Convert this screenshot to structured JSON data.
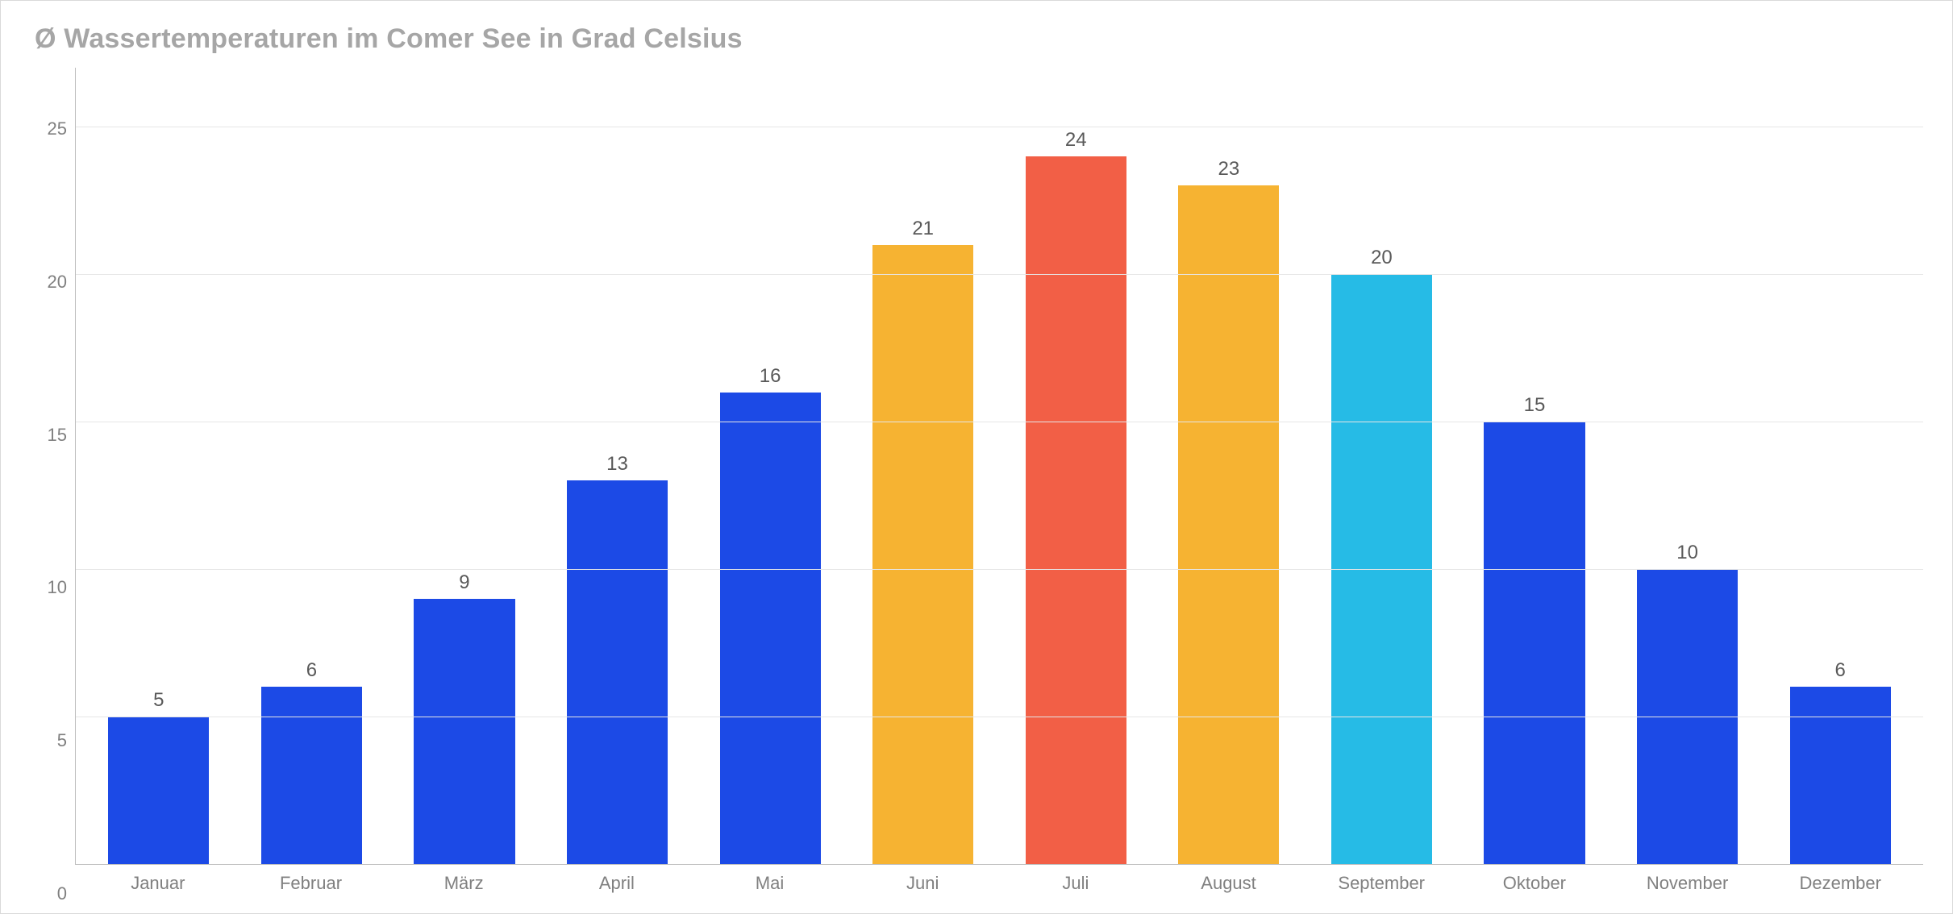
{
  "chart": {
    "type": "bar",
    "title": "Ø Wassertemperaturen im Comer See in Grad Celsius",
    "title_color": "#a6a6a6",
    "title_fontsize": 34,
    "title_fontweight": 700,
    "categories": [
      "Januar",
      "Februar",
      "März",
      "April",
      "Mai",
      "Juni",
      "Juli",
      "August",
      "September",
      "Oktober",
      "November",
      "Dezember"
    ],
    "values": [
      5,
      6,
      9,
      13,
      16,
      21,
      24,
      23,
      20,
      15,
      10,
      6
    ],
    "bar_colors": [
      "#1c4ae6",
      "#1c4ae6",
      "#1c4ae6",
      "#1c4ae6",
      "#1c4ae6",
      "#f6b332",
      "#f25f46",
      "#f6b332",
      "#26bbe6",
      "#1c4ae6",
      "#1c4ae6",
      "#1c4ae6"
    ],
    "ymin": 0,
    "ymax": 27,
    "ytick_step": 5,
    "ytick_labels": [
      "0",
      "5",
      "10",
      "15",
      "20",
      "25"
    ],
    "bar_width": 0.66,
    "background_color": "#ffffff",
    "border_color": "#d9d9d9",
    "grid_color": "#e6e6e6",
    "axis_line_color": "#bfbfbf",
    "axis_label_color": "#808080",
    "axis_label_fontsize": 22,
    "value_label_color": "#595959",
    "value_label_fontsize": 24
  }
}
